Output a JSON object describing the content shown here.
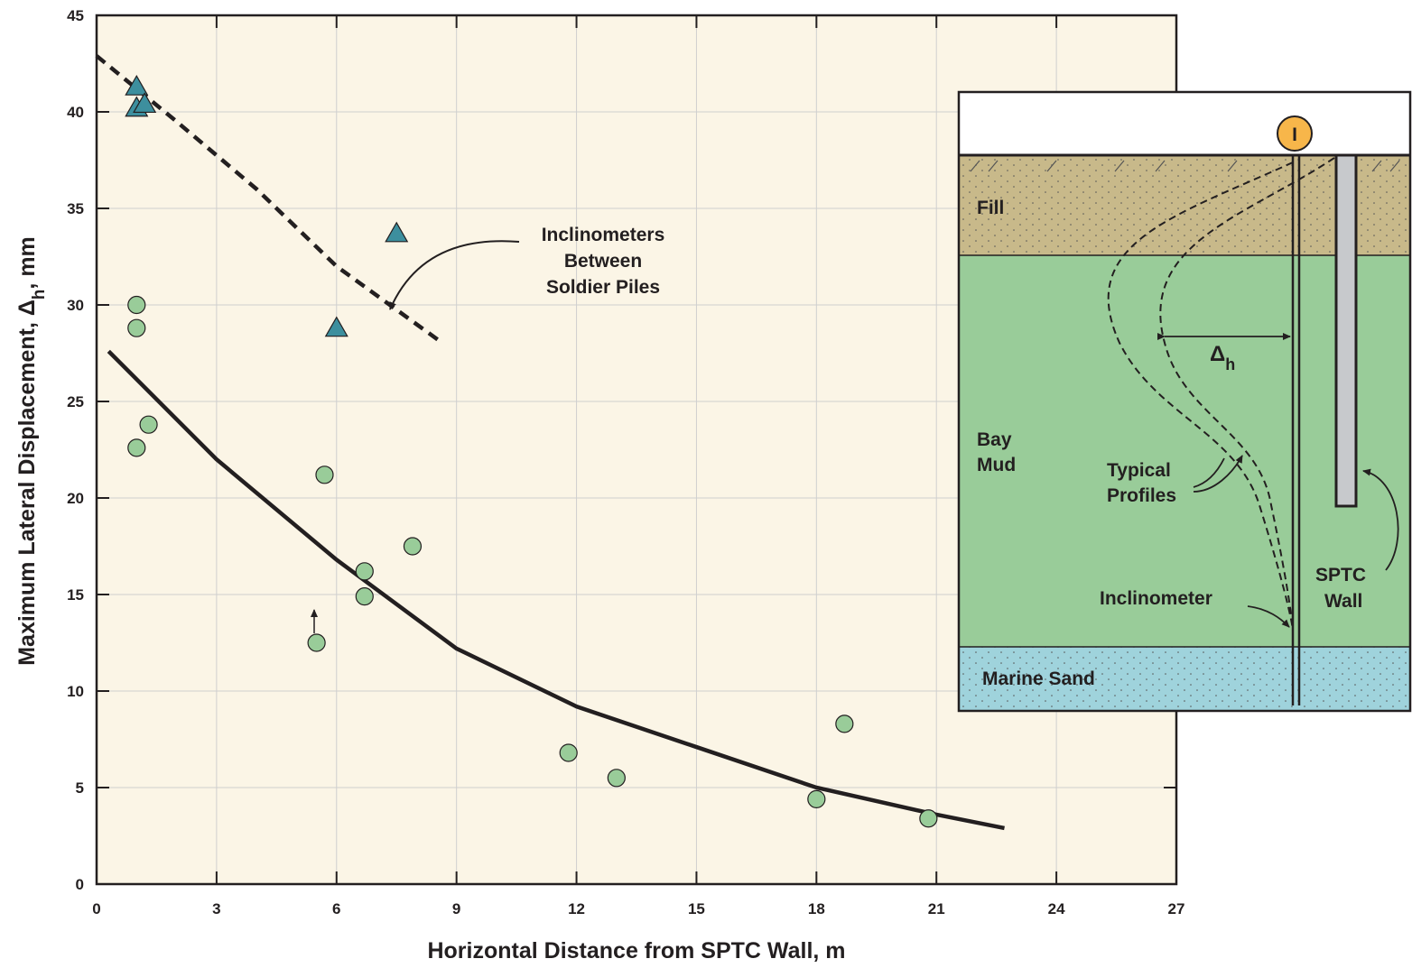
{
  "chart_data": {
    "type": "scatter",
    "xlabel": "Horizontal Distance from SPTC Wall, m",
    "ylabel": [
      "Maximum Lateral Displacement, Δ",
      "h",
      ", mm"
    ],
    "xlim": [
      0,
      27
    ],
    "ylim": [
      0,
      45
    ],
    "xticks": [
      0,
      3,
      6,
      9,
      12,
      15,
      18,
      21,
      24,
      27
    ],
    "yticks": [
      0,
      5,
      10,
      15,
      20,
      25,
      30,
      35,
      40,
      45
    ],
    "grid": true,
    "background": "#fbf5e6",
    "series": [
      {
        "marker": "circle",
        "color": "#99cc99",
        "x": [
          1.0,
          1.0,
          1.3,
          1.0,
          5.7,
          5.5,
          6.7,
          6.7,
          7.9,
          11.8,
          13.0,
          18.0,
          18.7,
          20.8
        ],
        "values": [
          30.0,
          28.8,
          23.8,
          22.6,
          21.2,
          12.5,
          16.2,
          14.9,
          17.5,
          6.8,
          5.5,
          4.4,
          8.3,
          3.4
        ]
      },
      {
        "marker": "triangle",
        "color": "#3d8f9e",
        "x": [
          1.0,
          1.0,
          1.2,
          7.5,
          6.0
        ],
        "values": [
          41.3,
          40.2,
          40.4,
          33.7,
          28.8
        ]
      },
      {
        "marker": "solid-line",
        "color": "#231f20",
        "x": [
          0.3,
          3,
          6,
          9,
          12,
          15,
          18,
          21,
          22.7
        ],
        "values": [
          27.6,
          22.0,
          16.8,
          12.2,
          9.2,
          7.1,
          5.0,
          3.6,
          2.9
        ]
      },
      {
        "marker": "dashed-line",
        "color": "#231f20",
        "x": [
          0,
          2,
          4,
          6,
          8.6
        ],
        "values": [
          42.9,
          39.5,
          36.0,
          32.0,
          28.1
        ]
      }
    ],
    "annotation": [
      "Inclinometers",
      "Between",
      "Soldier Piles"
    ],
    "inset": {
      "marker_label": "I",
      "fill": "Fill",
      "bay_mud": [
        "Bay",
        "Mud"
      ],
      "profiles": [
        "Typical",
        "Profiles"
      ],
      "wall": [
        "SPTC",
        "Wall"
      ],
      "inclinometer": "Inclinometer",
      "marine_sand": "Marine Sand",
      "delta": [
        "Δ",
        "h"
      ]
    }
  }
}
